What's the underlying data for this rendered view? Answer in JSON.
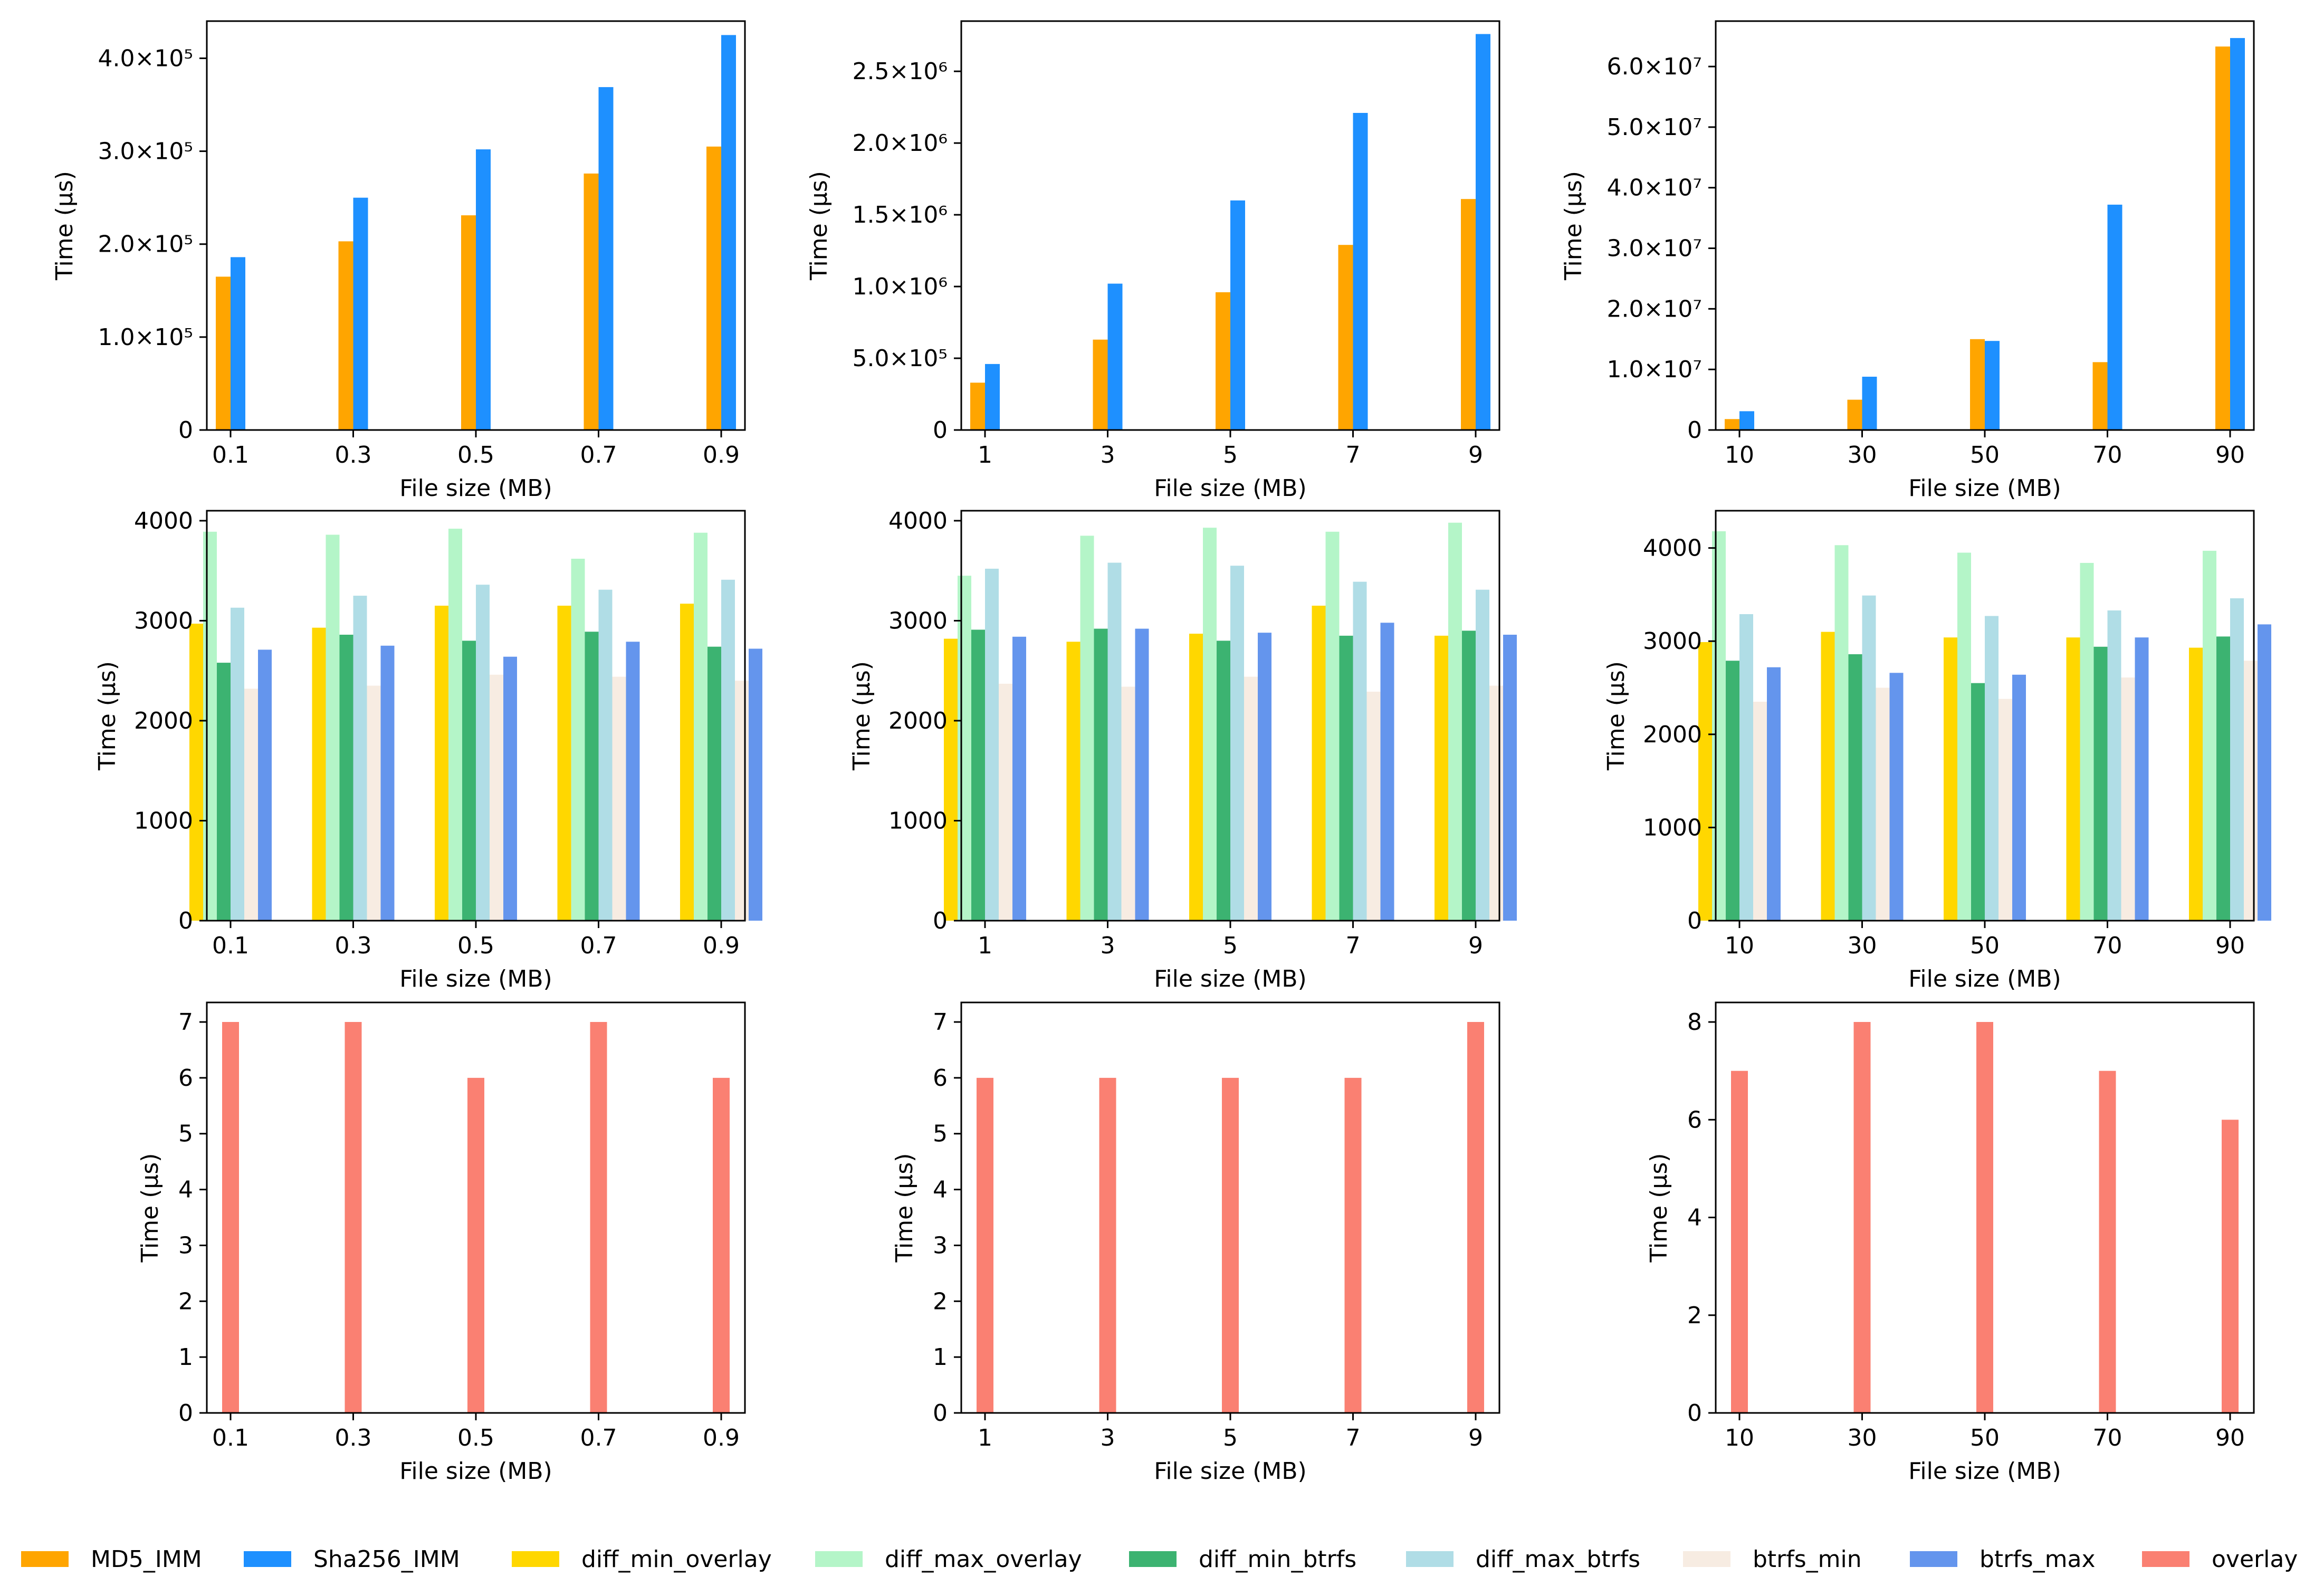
{
  "chart_data": [
    {
      "type": "bar",
      "panel": "row1-col1",
      "xlabel": "File size (MB)",
      "ylabel": "Time (μs)",
      "categories": [
        "0.1",
        "0.3",
        "0.5",
        "0.7",
        "0.9"
      ],
      "ylim": [
        0,
        440000
      ],
      "yticks": [
        {
          "value": 0,
          "label": "0"
        },
        {
          "value": 100000,
          "label": "1.0×10⁵"
        },
        {
          "value": 200000,
          "label": "2.0×10⁵"
        },
        {
          "value": 300000,
          "label": "3.0×10⁵"
        },
        {
          "value": 400000,
          "label": "4.0×10⁵"
        }
      ],
      "series": [
        {
          "name": "MD5_IMM",
          "color": "#ffa500",
          "values": [
            165000,
            203000,
            231000,
            276000,
            305000
          ]
        },
        {
          "name": "Sha256_IMM",
          "color": "#1e90ff",
          "values": [
            186000,
            250000,
            302000,
            369000,
            425000
          ]
        }
      ]
    },
    {
      "type": "bar",
      "panel": "row1-col2",
      "xlabel": "File size (MB)",
      "ylabel": "Time (μs)",
      "categories": [
        "1",
        "3",
        "5",
        "7",
        "9"
      ],
      "ylim": [
        0,
        2850000
      ],
      "yticks": [
        {
          "value": 0,
          "label": "0"
        },
        {
          "value": 500000,
          "label": "5.0×10⁵"
        },
        {
          "value": 1000000,
          "label": "1.0×10⁶"
        },
        {
          "value": 1500000,
          "label": "1.5×10⁶"
        },
        {
          "value": 2000000,
          "label": "2.0×10⁶"
        },
        {
          "value": 2500000,
          "label": "2.5×10⁶"
        }
      ],
      "series": [
        {
          "name": "MD5_IMM",
          "color": "#ffa500",
          "values": [
            330000,
            630000,
            960000,
            1290000,
            1610000
          ]
        },
        {
          "name": "Sha256_IMM",
          "color": "#1e90ff",
          "values": [
            460000,
            1020000,
            1600000,
            2210000,
            2760000
          ]
        }
      ]
    },
    {
      "type": "bar",
      "panel": "row1-col3",
      "xlabel": "File size (MB)",
      "ylabel": "Time (μs)",
      "categories": [
        "10",
        "30",
        "50",
        "70",
        "90"
      ],
      "ylim": [
        0,
        67500000
      ],
      "yticks": [
        {
          "value": 0,
          "label": "0"
        },
        {
          "value": 10000000,
          "label": "1.0×10⁷"
        },
        {
          "value": 20000000,
          "label": "2.0×10⁷"
        },
        {
          "value": 30000000,
          "label": "3.0×10⁷"
        },
        {
          "value": 40000000,
          "label": "4.0×10⁷"
        },
        {
          "value": 50000000,
          "label": "5.0×10⁷"
        },
        {
          "value": 60000000,
          "label": "6.0×10⁷"
        }
      ],
      "series": [
        {
          "name": "MD5_IMM",
          "color": "#ffa500",
          "values": [
            1800000,
            5000000,
            15000000,
            11200000,
            63300000
          ]
        },
        {
          "name": "Sha256_IMM",
          "color": "#1e90ff",
          "values": [
            3100000,
            8800000,
            14700000,
            37200000,
            64700000
          ]
        }
      ]
    },
    {
      "type": "bar",
      "panel": "row2-col1",
      "xlabel": "File size (MB)",
      "ylabel": "Time (μs)",
      "categories": [
        "0.1",
        "0.3",
        "0.5",
        "0.7",
        "0.9"
      ],
      "ylim": [
        0,
        4100
      ],
      "yticks": [
        {
          "value": 0,
          "label": "0"
        },
        {
          "value": 1000,
          "label": "1000"
        },
        {
          "value": 2000,
          "label": "2000"
        },
        {
          "value": 3000,
          "label": "3000"
        },
        {
          "value": 4000,
          "label": "4000"
        }
      ],
      "series": [
        {
          "name": "diff_min_overlay",
          "color": "#ffd700",
          "values": [
            2970,
            2930,
            3150,
            3150,
            3170
          ]
        },
        {
          "name": "diff_max_overlay",
          "color": "#b4f5c8",
          "values": [
            3890,
            3860,
            3920,
            3620,
            3880
          ]
        },
        {
          "name": "diff_min_btrfs",
          "color": "#3cb371",
          "values": [
            2580,
            2860,
            2800,
            2890,
            2740
          ]
        },
        {
          "name": "diff_max_btrfs",
          "color": "#b0dde6",
          "values": [
            3130,
            3250,
            3360,
            3310,
            3410
          ]
        },
        {
          "name": "btrfs_min",
          "color": "#f7ece2",
          "values": [
            2320,
            2350,
            2460,
            2440,
            2400
          ]
        },
        {
          "name": "btrfs_max",
          "color": "#6495ed",
          "values": [
            2710,
            2750,
            2640,
            2790,
            2720
          ]
        }
      ]
    },
    {
      "type": "bar",
      "panel": "row2-col2",
      "xlabel": "File size (MB)",
      "ylabel": "Time (μs)",
      "categories": [
        "1",
        "3",
        "5",
        "7",
        "9"
      ],
      "ylim": [
        0,
        4100
      ],
      "yticks": [
        {
          "value": 0,
          "label": "0"
        },
        {
          "value": 1000,
          "label": "1000"
        },
        {
          "value": 2000,
          "label": "2000"
        },
        {
          "value": 3000,
          "label": "3000"
        },
        {
          "value": 4000,
          "label": "4000"
        }
      ],
      "series": [
        {
          "name": "diff_min_overlay",
          "color": "#ffd700",
          "values": [
            2820,
            2790,
            2870,
            3150,
            2850
          ]
        },
        {
          "name": "diff_max_overlay",
          "color": "#b4f5c8",
          "values": [
            3450,
            3850,
            3930,
            3890,
            3980
          ]
        },
        {
          "name": "diff_min_btrfs",
          "color": "#3cb371",
          "values": [
            2910,
            2920,
            2800,
            2850,
            2900
          ]
        },
        {
          "name": "diff_max_btrfs",
          "color": "#b0dde6",
          "values": [
            3520,
            3580,
            3550,
            3390,
            3310
          ]
        },
        {
          "name": "btrfs_min",
          "color": "#f7ece2",
          "values": [
            2370,
            2340,
            2440,
            2290,
            2350
          ]
        },
        {
          "name": "btrfs_max",
          "color": "#6495ed",
          "values": [
            2840,
            2920,
            2880,
            2980,
            2860
          ]
        }
      ]
    },
    {
      "type": "bar",
      "panel": "row2-col3",
      "xlabel": "File size (MB)",
      "ylabel": "Time (μs)",
      "categories": [
        "10",
        "30",
        "50",
        "70",
        "90"
      ],
      "ylim": [
        0,
        4400
      ],
      "yticks": [
        {
          "value": 0,
          "label": "0"
        },
        {
          "value": 1000,
          "label": "1000"
        },
        {
          "value": 2000,
          "label": "2000"
        },
        {
          "value": 3000,
          "label": "3000"
        },
        {
          "value": 4000,
          "label": "4000"
        }
      ],
      "series": [
        {
          "name": "diff_min_overlay",
          "color": "#ffd700",
          "values": [
            2990,
            3100,
            3040,
            3040,
            2930
          ]
        },
        {
          "name": "diff_max_overlay",
          "color": "#b4f5c8",
          "values": [
            4180,
            4030,
            3950,
            3840,
            3970
          ]
        },
        {
          "name": "diff_min_btrfs",
          "color": "#3cb371",
          "values": [
            2790,
            2860,
            2550,
            2940,
            3050
          ]
        },
        {
          "name": "diff_max_btrfs",
          "color": "#b0dde6",
          "values": [
            3290,
            3490,
            3270,
            3330,
            3460
          ]
        },
        {
          "name": "btrfs_min",
          "color": "#f7ece2",
          "values": [
            2350,
            2500,
            2380,
            2610,
            2790
          ]
        },
        {
          "name": "btrfs_max",
          "color": "#6495ed",
          "values": [
            2720,
            2660,
            2640,
            3040,
            3180
          ]
        }
      ]
    },
    {
      "type": "bar",
      "panel": "row3-col1",
      "xlabel": "File size (MB)",
      "ylabel": "Time (μs)",
      "categories": [
        "0.1",
        "0.3",
        "0.5",
        "0.7",
        "0.9"
      ],
      "ylim": [
        0,
        7.35
      ],
      "yticks": [
        {
          "value": 0,
          "label": "0"
        },
        {
          "value": 1,
          "label": "1"
        },
        {
          "value": 2,
          "label": "2"
        },
        {
          "value": 3,
          "label": "3"
        },
        {
          "value": 4,
          "label": "4"
        },
        {
          "value": 5,
          "label": "5"
        },
        {
          "value": 6,
          "label": "6"
        },
        {
          "value": 7,
          "label": "7"
        }
      ],
      "series": [
        {
          "name": "overlay",
          "color": "#fa8072",
          "values": [
            7,
            7,
            6,
            7,
            6
          ]
        }
      ]
    },
    {
      "type": "bar",
      "panel": "row3-col2",
      "xlabel": "File size (MB)",
      "ylabel": "Time (μs)",
      "categories": [
        "1",
        "3",
        "5",
        "7",
        "9"
      ],
      "ylim": [
        0,
        7.35
      ],
      "yticks": [
        {
          "value": 0,
          "label": "0"
        },
        {
          "value": 1,
          "label": "1"
        },
        {
          "value": 2,
          "label": "2"
        },
        {
          "value": 3,
          "label": "3"
        },
        {
          "value": 4,
          "label": "4"
        },
        {
          "value": 5,
          "label": "5"
        },
        {
          "value": 6,
          "label": "6"
        },
        {
          "value": 7,
          "label": "7"
        }
      ],
      "series": [
        {
          "name": "overlay",
          "color": "#fa8072",
          "values": [
            6,
            6,
            6,
            6,
            7
          ]
        }
      ]
    },
    {
      "type": "bar",
      "panel": "row3-col3",
      "xlabel": "File size (MB)",
      "ylabel": "Time (μs)",
      "categories": [
        "10",
        "30",
        "50",
        "70",
        "90"
      ],
      "ylim": [
        0,
        8.4
      ],
      "yticks": [
        {
          "value": 0,
          "label": "0"
        },
        {
          "value": 2,
          "label": "2"
        },
        {
          "value": 4,
          "label": "4"
        },
        {
          "value": 6,
          "label": "6"
        },
        {
          "value": 8,
          "label": "8"
        }
      ],
      "series": [
        {
          "name": "overlay",
          "color": "#fa8072",
          "values": [
            7,
            8,
            8,
            7,
            6
          ]
        }
      ]
    }
  ],
  "legend": [
    {
      "label": "MD5_IMM",
      "color": "#ffa500"
    },
    {
      "label": "Sha256_IMM",
      "color": "#1e90ff"
    },
    {
      "label": "diff_min_overlay",
      "color": "#ffd700"
    },
    {
      "label": "diff_max_overlay",
      "color": "#b4f5c8"
    },
    {
      "label": "diff_min_btrfs",
      "color": "#3cb371"
    },
    {
      "label": "diff_max_btrfs",
      "color": "#b0dde6"
    },
    {
      "label": "btrfs_min",
      "color": "#f7ece2"
    },
    {
      "label": "btrfs_max",
      "color": "#6495ed"
    },
    {
      "label": "overlay",
      "color": "#fa8072"
    }
  ]
}
